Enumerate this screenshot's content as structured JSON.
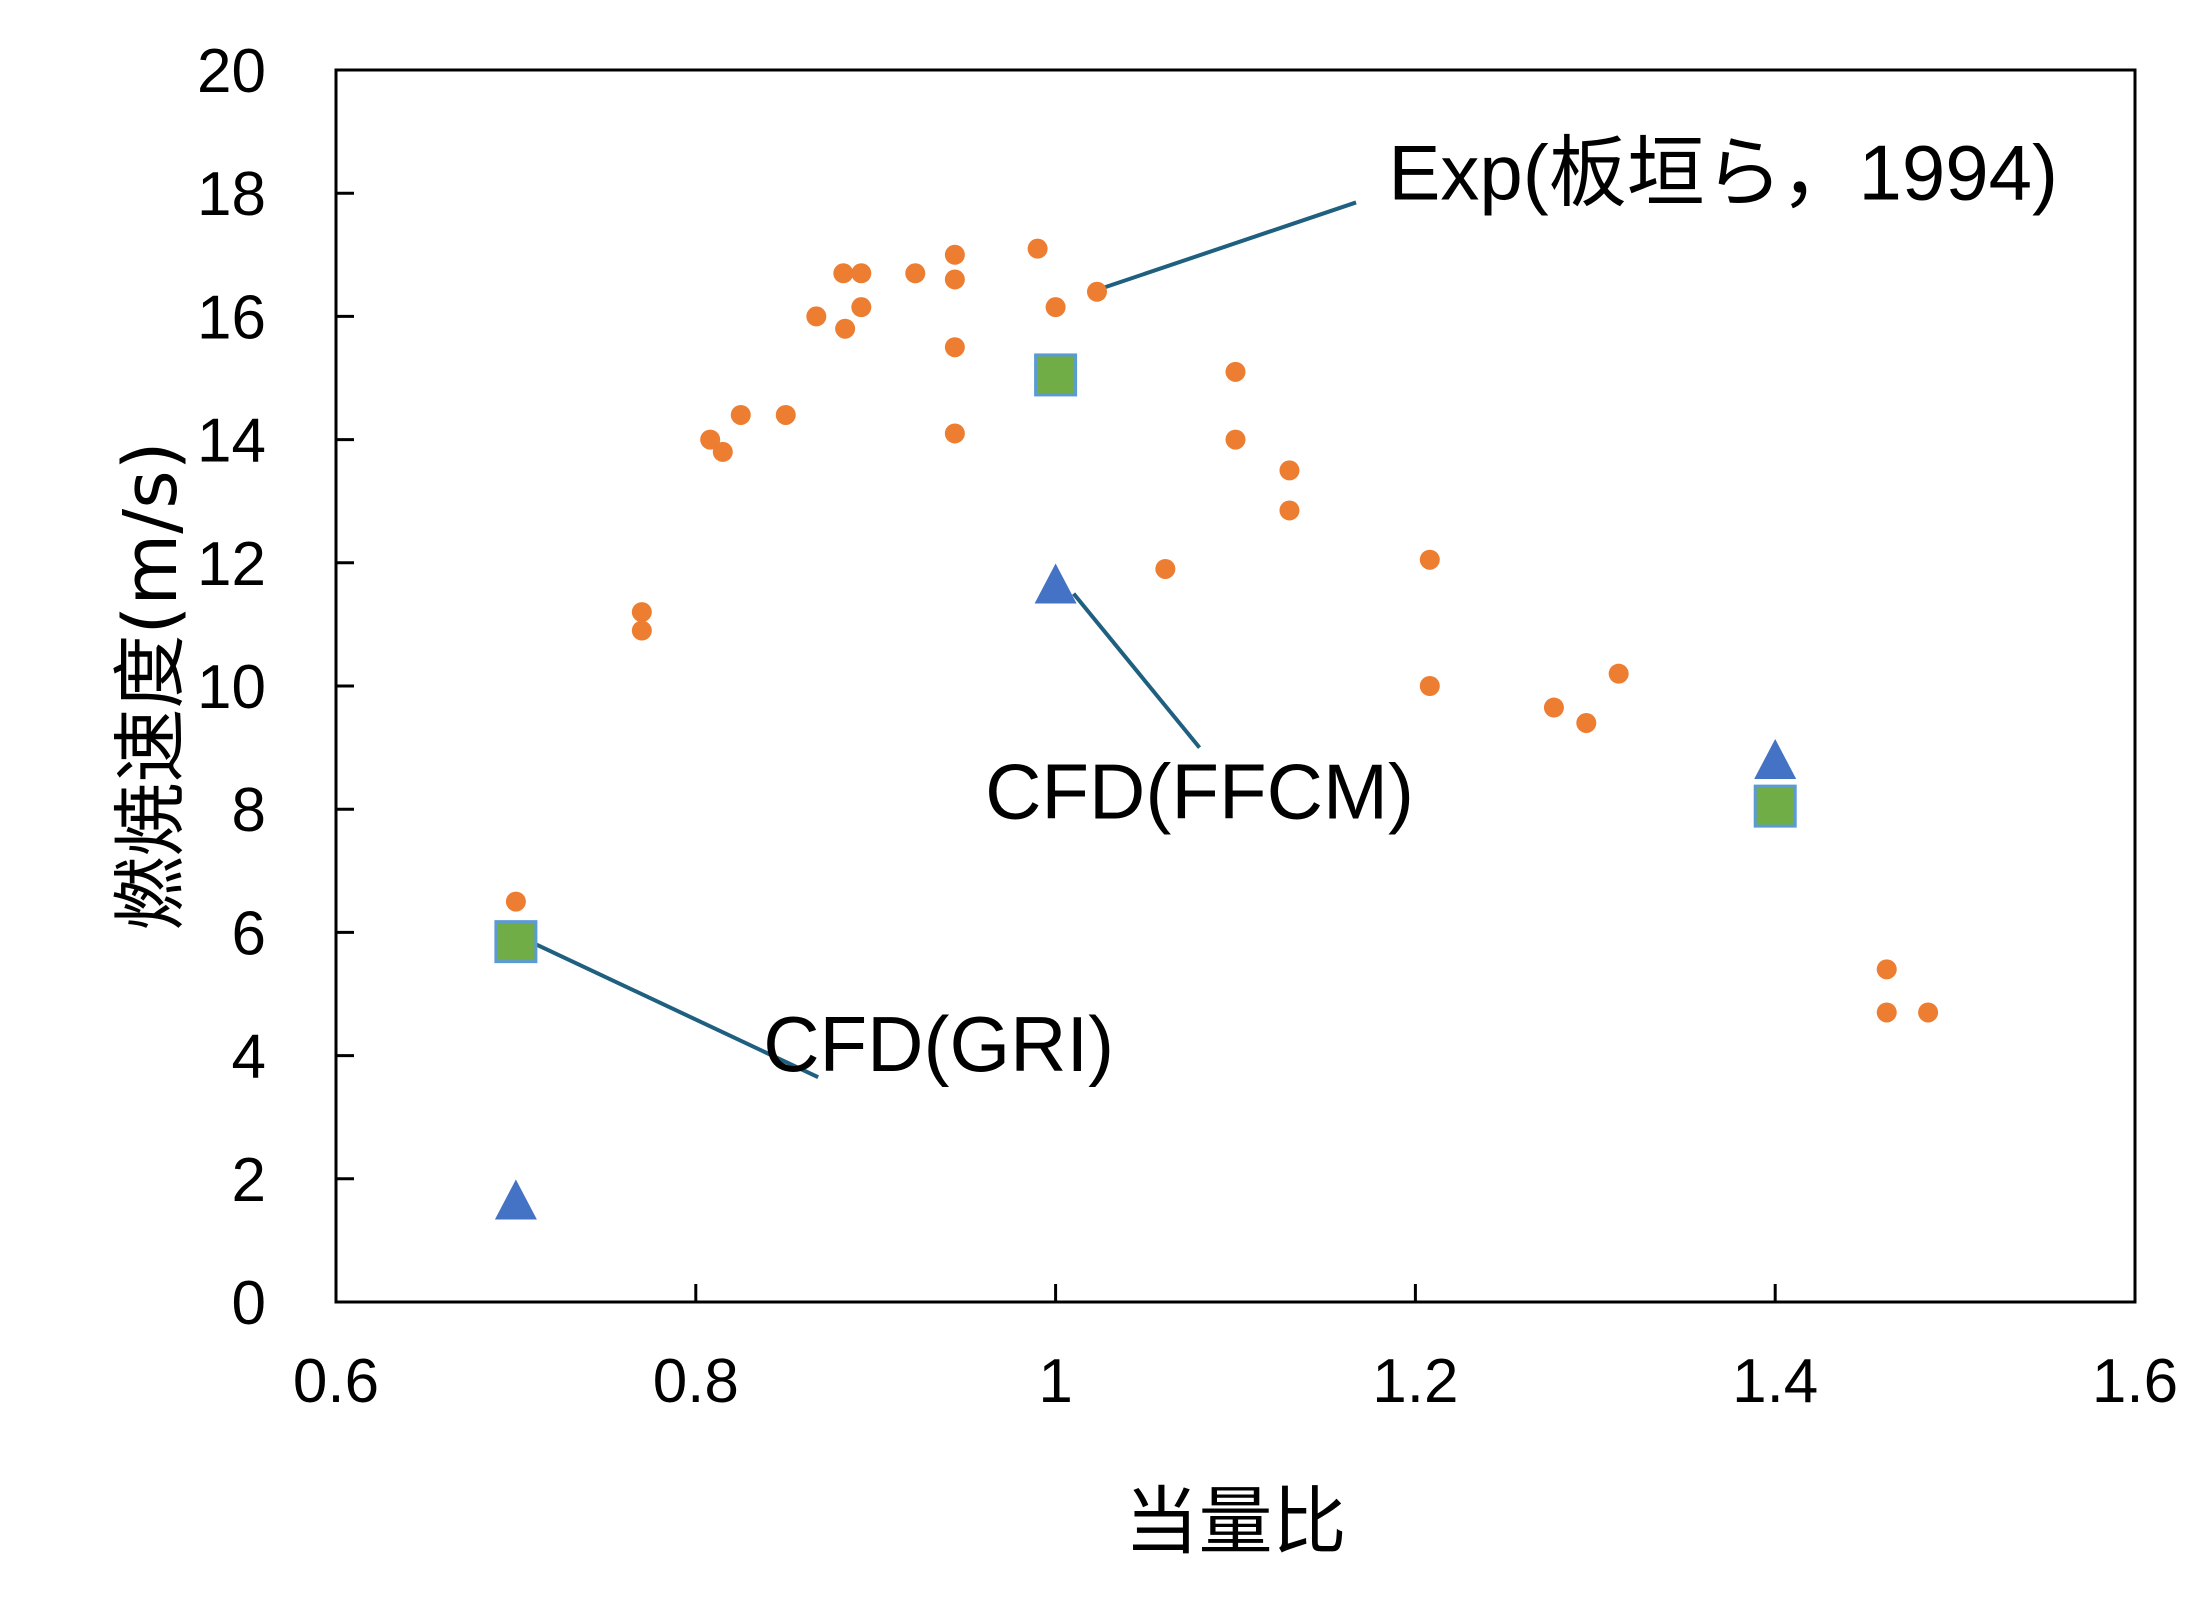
{
  "chart_data": {
    "type": "scatter",
    "xlabel": "当量比",
    "ylabel": "燃焼速度(m/s)",
    "xlim": [
      0.6,
      1.6
    ],
    "ylim": [
      0,
      20
    ],
    "xticks": [
      "0.6",
      "0.8",
      "1",
      "1.2",
      "1.4",
      "1.6"
    ],
    "yticks": [
      "0",
      "2",
      "4",
      "6",
      "8",
      "10",
      "12",
      "14",
      "16",
      "18",
      "20"
    ],
    "grid": false,
    "legend": "none",
    "series": [
      {
        "name": "Exp(板垣ら, 1994)",
        "marker": "circle",
        "color": "#ED7D31",
        "points": [
          [
            0.7,
            6.5
          ],
          [
            0.77,
            11.2
          ],
          [
            0.77,
            10.9
          ],
          [
            0.808,
            14.0
          ],
          [
            0.815,
            13.8
          ],
          [
            0.825,
            14.4
          ],
          [
            0.85,
            14.4
          ],
          [
            0.867,
            16.0
          ],
          [
            0.882,
            16.7
          ],
          [
            0.883,
            15.8
          ],
          [
            0.892,
            16.7
          ],
          [
            0.892,
            16.15
          ],
          [
            0.922,
            16.7
          ],
          [
            0.944,
            17.0
          ],
          [
            0.944,
            16.6
          ],
          [
            0.944,
            15.5
          ],
          [
            0.944,
            14.1
          ],
          [
            0.99,
            17.1
          ],
          [
            1.0,
            16.15
          ],
          [
            1.023,
            16.4
          ],
          [
            1.061,
            11.9
          ],
          [
            1.1,
            15.1
          ],
          [
            1.1,
            14.0
          ],
          [
            1.13,
            13.5
          ],
          [
            1.13,
            12.85
          ],
          [
            1.208,
            12.05
          ],
          [
            1.208,
            10.0
          ],
          [
            1.277,
            9.65
          ],
          [
            1.295,
            9.4
          ],
          [
            1.313,
            10.2
          ],
          [
            1.462,
            5.4
          ],
          [
            1.462,
            4.7
          ],
          [
            1.485,
            4.7
          ]
        ]
      },
      {
        "name": "CFD(GRI)",
        "marker": "square",
        "color": "#70AD47",
        "points": [
          [
            0.7,
            5.85
          ],
          [
            1.0,
            15.05
          ],
          [
            1.4,
            8.05
          ]
        ]
      },
      {
        "name": "CFD(FFCM)",
        "marker": "triangle",
        "color": "#4472C4",
        "points": [
          [
            0.7,
            1.6
          ],
          [
            1.0,
            11.6
          ],
          [
            1.4,
            8.75
          ]
        ]
      }
    ],
    "annotations": [
      {
        "text": "Exp(板垣ら，1994)",
        "text_pos": [
          1.185,
          17.9
        ],
        "text_anchor": "start",
        "line": [
          [
            1.02,
            16.4
          ],
          [
            1.167,
            17.85
          ]
        ]
      },
      {
        "text": "CFD(FFCM)",
        "text_pos": [
          1.08,
          7.85
        ],
        "text_anchor": "middle",
        "line": [
          [
            1.01,
            11.5
          ],
          [
            1.08,
            9.0
          ]
        ]
      },
      {
        "text": "CFD(GRI)",
        "text_pos": [
          0.935,
          3.75
        ],
        "text_anchor": "middle",
        "line": [
          [
            0.708,
            5.85
          ],
          [
            0.868,
            3.65
          ]
        ]
      }
    ]
  },
  "colors": {
    "axis": "#000000",
    "leader_line": "#1F5F7F",
    "square_border": "#5B9BD5"
  }
}
